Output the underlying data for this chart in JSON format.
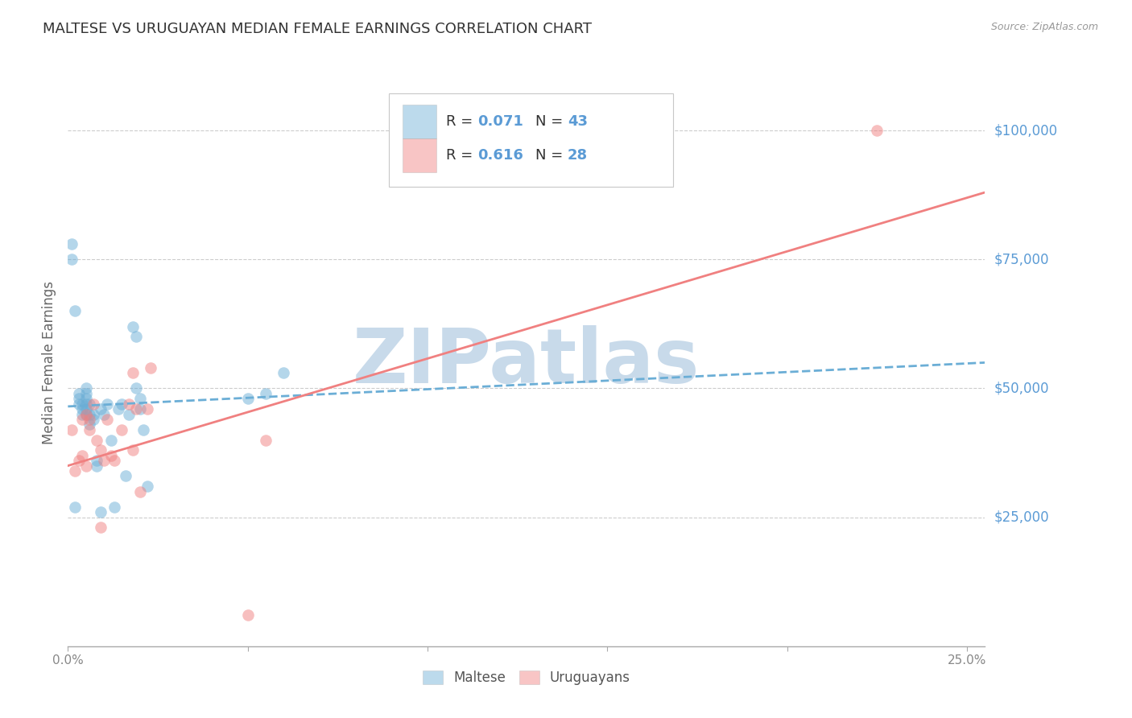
{
  "title": "MALTESE VS URUGUAYAN MEDIAN FEMALE EARNINGS CORRELATION CHART",
  "source": "Source: ZipAtlas.com",
  "ylabel": "Median Female Earnings",
  "y_tick_labels": [
    "$25,000",
    "$50,000",
    "$75,000",
    "$100,000"
  ],
  "y_tick_values": [
    25000,
    50000,
    75000,
    100000
  ],
  "y_tick_color": "#5b9bd5",
  "legend_R1": "0.071",
  "legend_N1": "43",
  "legend_R2": "0.616",
  "legend_N2": "28",
  "blue_dot_color": "#6baed6",
  "pink_dot_color": "#f08080",
  "watermark": "ZIPatlas",
  "watermark_color": "#c8daea",
  "maltese_x": [
    0.001,
    0.002,
    0.003,
    0.003,
    0.003,
    0.004,
    0.004,
    0.004,
    0.005,
    0.005,
    0.005,
    0.005,
    0.005,
    0.005,
    0.006,
    0.006,
    0.006,
    0.007,
    0.007,
    0.008,
    0.008,
    0.009,
    0.009,
    0.01,
    0.011,
    0.012,
    0.013,
    0.015,
    0.016,
    0.017,
    0.018,
    0.019,
    0.019,
    0.02,
    0.02,
    0.021,
    0.022,
    0.05,
    0.055,
    0.06,
    0.001,
    0.002,
    0.014
  ],
  "maltese_y": [
    78000,
    65000,
    49000,
    48000,
    47000,
    47000,
    46000,
    45000,
    50000,
    49000,
    48000,
    47000,
    46000,
    45000,
    47000,
    45000,
    43000,
    45000,
    44000,
    36000,
    35000,
    46000,
    26000,
    45000,
    47000,
    40000,
    27000,
    47000,
    33000,
    45000,
    62000,
    60000,
    50000,
    48000,
    46000,
    42000,
    31000,
    48000,
    49000,
    53000,
    75000,
    27000,
    46000
  ],
  "uruguayan_x": [
    0.001,
    0.002,
    0.003,
    0.004,
    0.004,
    0.005,
    0.005,
    0.006,
    0.006,
    0.007,
    0.008,
    0.009,
    0.009,
    0.01,
    0.011,
    0.012,
    0.013,
    0.015,
    0.017,
    0.018,
    0.019,
    0.02,
    0.022,
    0.023,
    0.05,
    0.055,
    0.018,
    0.225
  ],
  "uruguayan_y": [
    42000,
    34000,
    36000,
    44000,
    37000,
    45000,
    35000,
    44000,
    42000,
    47000,
    40000,
    38000,
    23000,
    36000,
    44000,
    37000,
    36000,
    42000,
    47000,
    38000,
    46000,
    30000,
    46000,
    54000,
    6000,
    40000,
    53000,
    100000
  ],
  "blue_line_x": [
    0.0,
    0.255
  ],
  "blue_line_y": [
    46500,
    55000
  ],
  "pink_line_x": [
    0.0,
    0.255
  ],
  "pink_line_y": [
    35000,
    88000
  ],
  "xlim": [
    0.0,
    0.255
  ],
  "ylim": [
    0,
    110000
  ],
  "background_color": "#ffffff",
  "grid_color": "#cccccc",
  "title_color": "#333333",
  "title_fontsize": 13,
  "axis_label_color": "#666666",
  "dot_size": 110,
  "dot_alpha": 0.5
}
